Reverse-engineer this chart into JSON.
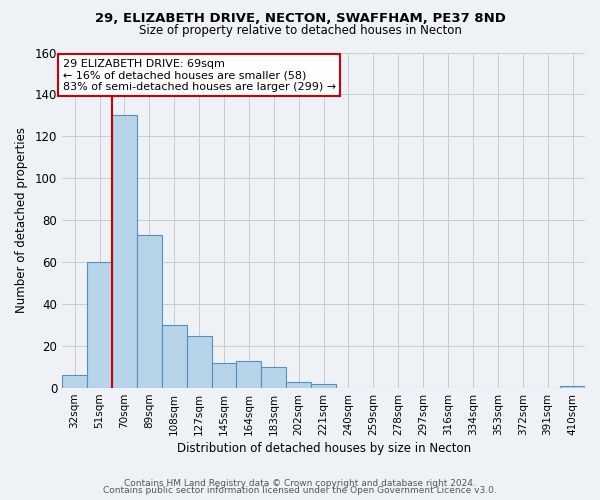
{
  "title": "29, ELIZABETH DRIVE, NECTON, SWAFFHAM, PE37 8ND",
  "subtitle": "Size of property relative to detached houses in Necton",
  "xlabel": "Distribution of detached houses by size in Necton",
  "ylabel": "Number of detached properties",
  "bar_labels": [
    "32sqm",
    "51sqm",
    "70sqm",
    "89sqm",
    "108sqm",
    "127sqm",
    "145sqm",
    "164sqm",
    "183sqm",
    "202sqm",
    "221sqm",
    "240sqm",
    "259sqm",
    "278sqm",
    "297sqm",
    "316sqm",
    "334sqm",
    "353sqm",
    "372sqm",
    "391sqm",
    "410sqm"
  ],
  "bar_values": [
    6,
    60,
    130,
    73,
    30,
    25,
    12,
    13,
    10,
    3,
    2,
    0,
    0,
    0,
    0,
    0,
    0,
    0,
    0,
    0,
    1
  ],
  "bar_color": "#b8d4e8",
  "bar_edge_color": "#5590c0",
  "bar_edge_width": 0.8,
  "vline_color": "#cc0000",
  "vline_x_index": 2,
  "ylim": [
    0,
    160
  ],
  "yticks": [
    0,
    20,
    40,
    60,
    80,
    100,
    120,
    140,
    160
  ],
  "grid_color": "#cccccc",
  "background_color": "#eef2f7",
  "annotation_text": "29 ELIZABETH DRIVE: 69sqm\n← 16% of detached houses are smaller (58)\n83% of semi-detached houses are larger (299) →",
  "annotation_box_edge": "#cc0000",
  "footer_line1": "Contains HM Land Registry data © Crown copyright and database right 2024.",
  "footer_line2": "Contains public sector information licensed under the Open Government Licence v3.0."
}
